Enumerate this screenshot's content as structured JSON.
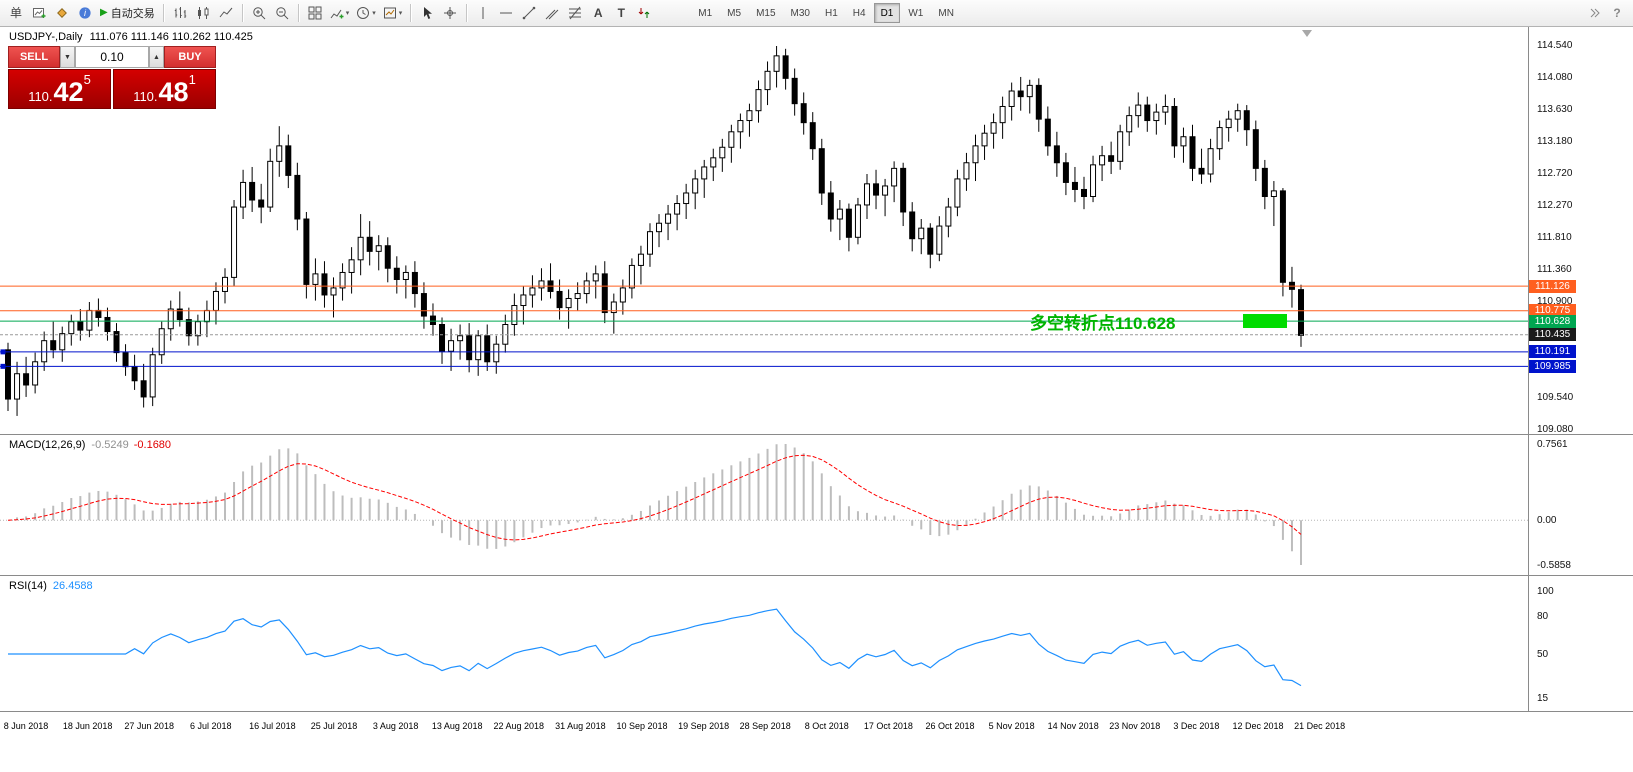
{
  "toolbar": {
    "new_order_label": "单",
    "autotrading_label": "自动交易",
    "timeframes": [
      "M1",
      "M5",
      "M15",
      "M30",
      "H1",
      "H4",
      "D1",
      "W1",
      "MN"
    ],
    "active_timeframe": "D1",
    "buttons": [
      {
        "name": "new-order-button",
        "label": "单",
        "type": "text"
      },
      {
        "name": "new-chart-button",
        "icon": "new-chart"
      },
      {
        "name": "profiles-button",
        "icon": "profiles"
      },
      {
        "name": "data-window-button",
        "icon": "data-window"
      },
      {
        "name": "autotrading-button",
        "icon": "play",
        "label": "自动交易"
      },
      {
        "type": "sep"
      },
      {
        "name": "bar-chart-button",
        "icon": "bar"
      },
      {
        "name": "candlestick-chart-button",
        "icon": "candle"
      },
      {
        "name": "line-chart-button",
        "icon": "line"
      },
      {
        "type": "sep"
      },
      {
        "name": "zoom-in-button",
        "icon": "zoom-in"
      },
      {
        "name": "zoom-out-button",
        "icon": "zoom-out"
      },
      {
        "type": "sep"
      },
      {
        "name": "tile-windows-button",
        "icon": "tile"
      },
      {
        "name": "indicators-button",
        "icon": "indicators",
        "dropdown": true
      },
      {
        "name": "periods-button",
        "icon": "periods",
        "dropdown": true
      },
      {
        "name": "templates-button",
        "icon": "templates",
        "dropdown": true
      },
      {
        "type": "sep"
      },
      {
        "name": "cursor-button",
        "icon": "cursor"
      },
      {
        "name": "crosshair-button",
        "icon": "crosshair"
      },
      {
        "type": "sep"
      },
      {
        "name": "vertical-line-button",
        "icon": "vline"
      },
      {
        "name": "horizontal-line-button",
        "icon": "hline"
      },
      {
        "name": "trendline-button",
        "icon": "trendline"
      },
      {
        "name": "channel-button",
        "icon": "channel"
      },
      {
        "name": "fibonacci-button",
        "icon": "fibo"
      },
      {
        "name": "text-button",
        "icon": "text"
      },
      {
        "name": "label-button",
        "icon": "label"
      },
      {
        "name": "arrows-button",
        "icon": "arrows"
      },
      {
        "type": "gap"
      },
      {
        "type": "timeframes"
      },
      {
        "type": "spacer"
      },
      {
        "name": "toolbar-overflow-button",
        "icon": "overflow"
      },
      {
        "name": "help-button",
        "icon": "help"
      }
    ]
  },
  "trade_panel": {
    "sell_label": "SELL",
    "buy_label": "BUY",
    "volume": "0.10",
    "sell_price": {
      "prefix": "110.",
      "big": "42",
      "sup": "5"
    },
    "buy_price": {
      "prefix": "110.",
      "big": "48",
      "sup": "1"
    }
  },
  "chart": {
    "symbol_title": "USDJPY-,Daily",
    "ohlc_text": "111.076 111.146 110.262 110.425",
    "axis_ticks": [
      "114.540",
      "114.080",
      "113.630",
      "113.180",
      "112.720",
      "112.270",
      "111.810",
      "111.360",
      "110.900",
      "109.540",
      "109.080"
    ],
    "levels": [
      {
        "price": 111.126,
        "label": "111.126",
        "color": "#ff5f1f",
        "style": "solid"
      },
      {
        "price": 110.775,
        "label": "110.775",
        "color": "#ff5f1f",
        "style": "solid"
      },
      {
        "price": 110.628,
        "label": "110.628",
        "color": "#00a651",
        "style": "solid"
      },
      {
        "price": 110.435,
        "label": "110.435",
        "color": "#1a1a1a",
        "style": "dash"
      },
      {
        "price": 110.191,
        "label": "110.191",
        "color": "#0013cc",
        "style": "solid",
        "handle": true
      },
      {
        "price": 109.985,
        "label": "109.985",
        "color": "#0013cc",
        "style": "solid",
        "handle": true
      }
    ],
    "current_price": "110.435",
    "annotation": {
      "text": "多空转折点110.628",
      "color": "#00b400"
    },
    "highlight_rect_color": "#00dc00",
    "candle_up_color": "#ffffff",
    "candle_down_color": "#000000",
    "candle_outline": "#000000",
    "candles": [
      [
        110.22,
        110.32,
        109.35,
        109.52
      ],
      [
        109.52,
        110.05,
        109.28,
        109.88
      ],
      [
        109.88,
        110.12,
        109.55,
        109.72
      ],
      [
        109.72,
        110.18,
        109.6,
        110.05
      ],
      [
        110.05,
        110.48,
        109.92,
        110.35
      ],
      [
        110.35,
        110.62,
        110.1,
        110.22
      ],
      [
        110.22,
        110.55,
        110.05,
        110.45
      ],
      [
        110.45,
        110.72,
        110.28,
        110.62
      ],
      [
        110.62,
        110.8,
        110.35,
        110.5
      ],
      [
        110.5,
        110.9,
        110.4,
        110.78
      ],
      [
        110.78,
        110.95,
        110.55,
        110.68
      ],
      [
        110.68,
        110.82,
        110.35,
        110.48
      ],
      [
        110.48,
        110.6,
        110.05,
        110.18
      ],
      [
        110.18,
        110.3,
        109.85,
        109.98
      ],
      [
        109.98,
        110.15,
        109.65,
        109.78
      ],
      [
        109.78,
        110.02,
        109.4,
        109.55
      ],
      [
        109.55,
        110.25,
        109.42,
        110.15
      ],
      [
        110.15,
        110.62,
        110.02,
        110.52
      ],
      [
        110.52,
        110.92,
        110.35,
        110.8
      ],
      [
        110.8,
        111.05,
        110.55,
        110.65
      ],
      [
        110.65,
        110.82,
        110.28,
        110.42
      ],
      [
        110.42,
        110.72,
        110.28,
        110.62
      ],
      [
        110.62,
        110.92,
        110.4,
        110.78
      ],
      [
        110.78,
        111.18,
        110.58,
        111.05
      ],
      [
        111.05,
        111.38,
        110.88,
        111.25
      ],
      [
        111.25,
        112.35,
        111.12,
        112.25
      ],
      [
        112.25,
        112.78,
        112.08,
        112.6
      ],
      [
        112.6,
        112.82,
        112.18,
        112.35
      ],
      [
        112.35,
        112.58,
        112.02,
        112.25
      ],
      [
        112.25,
        113.08,
        112.18,
        112.9
      ],
      [
        112.9,
        113.4,
        112.68,
        113.12
      ],
      [
        113.12,
        113.28,
        112.52,
        112.7
      ],
      [
        112.7,
        112.88,
        111.92,
        112.08
      ],
      [
        112.08,
        112.18,
        110.95,
        111.15
      ],
      [
        111.15,
        111.52,
        110.92,
        111.3
      ],
      [
        111.3,
        111.48,
        110.82,
        111.0
      ],
      [
        111.0,
        111.25,
        110.68,
        111.1
      ],
      [
        111.1,
        111.45,
        110.92,
        111.32
      ],
      [
        111.32,
        111.68,
        111.02,
        111.5
      ],
      [
        111.5,
        112.15,
        111.28,
        111.82
      ],
      [
        111.82,
        112.05,
        111.42,
        111.62
      ],
      [
        111.62,
        111.85,
        111.35,
        111.7
      ],
      [
        111.7,
        111.82,
        111.18,
        111.38
      ],
      [
        111.38,
        111.55,
        111.02,
        111.22
      ],
      [
        111.22,
        111.42,
        110.95,
        111.32
      ],
      [
        111.32,
        111.48,
        110.82,
        111.02
      ],
      [
        111.02,
        111.18,
        110.52,
        110.7
      ],
      [
        110.7,
        110.88,
        110.42,
        110.58
      ],
      [
        110.58,
        110.68,
        110.02,
        110.2
      ],
      [
        110.2,
        110.52,
        109.92,
        110.35
      ],
      [
        110.35,
        110.58,
        110.08,
        110.42
      ],
      [
        110.42,
        110.6,
        109.9,
        110.08
      ],
      [
        110.08,
        110.5,
        109.85,
        110.42
      ],
      [
        110.42,
        110.58,
        109.92,
        110.05
      ],
      [
        110.05,
        110.42,
        109.88,
        110.3
      ],
      [
        110.3,
        110.72,
        110.18,
        110.58
      ],
      [
        110.58,
        111.02,
        110.42,
        110.85
      ],
      [
        110.85,
        111.12,
        110.58,
        111.0
      ],
      [
        111.0,
        111.28,
        110.82,
        111.1
      ],
      [
        111.1,
        111.38,
        110.92,
        111.2
      ],
      [
        111.2,
        111.45,
        110.95,
        111.05
      ],
      [
        111.05,
        111.22,
        110.65,
        110.82
      ],
      [
        110.82,
        111.08,
        110.52,
        110.95
      ],
      [
        110.95,
        111.18,
        110.78,
        111.02
      ],
      [
        111.02,
        111.32,
        110.88,
        111.2
      ],
      [
        111.2,
        111.42,
        110.95,
        111.3
      ],
      [
        111.3,
        111.48,
        110.6,
        110.75
      ],
      [
        110.75,
        111.02,
        110.45,
        110.9
      ],
      [
        110.9,
        111.22,
        110.72,
        111.1
      ],
      [
        111.1,
        111.52,
        110.95,
        111.42
      ],
      [
        111.42,
        111.7,
        111.15,
        111.58
      ],
      [
        111.58,
        112.02,
        111.4,
        111.9
      ],
      [
        111.9,
        112.15,
        111.68,
        112.02
      ],
      [
        112.02,
        112.28,
        111.78,
        112.15
      ],
      [
        112.15,
        112.42,
        111.92,
        112.3
      ],
      [
        112.3,
        112.58,
        112.08,
        112.45
      ],
      [
        112.45,
        112.78,
        112.22,
        112.65
      ],
      [
        112.65,
        112.92,
        112.38,
        112.82
      ],
      [
        112.82,
        113.08,
        112.62,
        112.95
      ],
      [
        112.95,
        113.22,
        112.75,
        113.1
      ],
      [
        113.1,
        113.42,
        112.88,
        113.32
      ],
      [
        113.32,
        113.58,
        113.08,
        113.48
      ],
      [
        113.48,
        113.72,
        113.25,
        113.62
      ],
      [
        113.62,
        114.05,
        113.45,
        113.92
      ],
      [
        113.92,
        114.32,
        113.7,
        114.18
      ],
      [
        114.18,
        114.54,
        113.95,
        114.4
      ],
      [
        114.4,
        114.5,
        113.92,
        114.08
      ],
      [
        114.08,
        114.22,
        113.55,
        113.72
      ],
      [
        113.72,
        113.88,
        113.28,
        113.45
      ],
      [
        113.45,
        113.6,
        112.92,
        113.08
      ],
      [
        113.08,
        113.22,
        112.28,
        112.45
      ],
      [
        112.45,
        112.62,
        111.9,
        112.08
      ],
      [
        112.08,
        112.35,
        111.78,
        112.22
      ],
      [
        112.22,
        112.3,
        111.62,
        111.82
      ],
      [
        111.82,
        112.38,
        111.72,
        112.28
      ],
      [
        112.28,
        112.72,
        112.08,
        112.58
      ],
      [
        112.58,
        112.78,
        112.22,
        112.42
      ],
      [
        112.42,
        112.65,
        112.12,
        112.55
      ],
      [
        112.55,
        112.9,
        112.32,
        112.8
      ],
      [
        112.8,
        112.88,
        111.98,
        112.18
      ],
      [
        112.18,
        112.32,
        111.62,
        111.8
      ],
      [
        111.8,
        112.08,
        111.58,
        111.95
      ],
      [
        111.95,
        112.02,
        111.38,
        111.58
      ],
      [
        111.58,
        112.12,
        111.48,
        111.98
      ],
      [
        111.98,
        112.38,
        111.82,
        112.25
      ],
      [
        112.25,
        112.78,
        112.12,
        112.65
      ],
      [
        112.65,
        113.02,
        112.48,
        112.88
      ],
      [
        112.88,
        113.28,
        112.62,
        113.12
      ],
      [
        113.12,
        113.42,
        112.92,
        113.3
      ],
      [
        113.3,
        113.58,
        113.08,
        113.45
      ],
      [
        113.45,
        113.82,
        113.22,
        113.68
      ],
      [
        113.68,
        114.02,
        113.48,
        113.9
      ],
      [
        113.9,
        114.1,
        113.62,
        113.82
      ],
      [
        113.82,
        114.06,
        113.58,
        113.98
      ],
      [
        113.98,
        114.08,
        113.32,
        113.5
      ],
      [
        113.5,
        113.68,
        112.98,
        113.12
      ],
      [
        113.12,
        113.32,
        112.68,
        112.88
      ],
      [
        112.88,
        113.02,
        112.42,
        112.6
      ],
      [
        112.6,
        112.82,
        112.32,
        112.5
      ],
      [
        112.5,
        112.68,
        112.22,
        112.4
      ],
      [
        112.4,
        112.98,
        112.32,
        112.85
      ],
      [
        112.85,
        113.12,
        112.62,
        112.98
      ],
      [
        112.98,
        113.18,
        112.72,
        112.9
      ],
      [
        112.9,
        113.42,
        112.78,
        113.32
      ],
      [
        113.32,
        113.68,
        113.12,
        113.55
      ],
      [
        113.55,
        113.88,
        113.38,
        113.7
      ],
      [
        113.7,
        113.82,
        113.32,
        113.48
      ],
      [
        113.48,
        113.72,
        113.28,
        113.6
      ],
      [
        113.6,
        113.85,
        113.42,
        113.68
      ],
      [
        113.68,
        113.8,
        112.95,
        113.12
      ],
      [
        113.12,
        113.38,
        112.88,
        113.25
      ],
      [
        113.25,
        113.42,
        112.62,
        112.8
      ],
      [
        112.8,
        113.08,
        112.58,
        112.72
      ],
      [
        112.72,
        113.22,
        112.6,
        113.08
      ],
      [
        113.08,
        113.48,
        112.92,
        113.38
      ],
      [
        113.38,
        113.62,
        113.18,
        113.5
      ],
      [
        113.5,
        113.72,
        113.32,
        113.62
      ],
      [
        113.62,
        113.7,
        113.12,
        113.35
      ],
      [
        113.35,
        113.48,
        112.62,
        112.8
      ],
      [
        112.8,
        112.92,
        112.22,
        112.4
      ],
      [
        112.4,
        112.62,
        111.98,
        112.48
      ],
      [
        112.48,
        112.52,
        110.98,
        111.18
      ],
      [
        111.18,
        111.4,
        110.82,
        111.08
      ],
      [
        111.076,
        111.146,
        110.262,
        110.425
      ]
    ]
  },
  "macd": {
    "label": "MACD(12,26,9)",
    "value_main": "-0.5249",
    "value_signal": "-0.1680",
    "axis_labels": [
      "0.7561",
      "0.00",
      "-0.5858"
    ],
    "histogram_color": "#bdbdbd",
    "signal_color": "#ff0000"
  },
  "rsi": {
    "label": "RSI(14)",
    "value": "26.4588",
    "axis_labels": [
      "100",
      "80",
      "50",
      "15"
    ],
    "color": "#1e90ff"
  },
  "dates": [
    "8 Jun 2018",
    "18 Jun 2018",
    "27 Jun 2018",
    "6 Jul 2018",
    "16 Jul 2018",
    "25 Jul 2018",
    "3 Aug 2018",
    "13 Aug 2018",
    "22 Aug 2018",
    "31 Aug 2018",
    "10 Sep 2018",
    "19 Sep 2018",
    "28 Sep 2018",
    "8 Oct 2018",
    "17 Oct 2018",
    "26 Oct 2018",
    "5 Nov 2018",
    "14 Nov 2018",
    "23 Nov 2018",
    "3 Dec 2018",
    "12 Dec 2018",
    "21 Dec 2018"
  ]
}
